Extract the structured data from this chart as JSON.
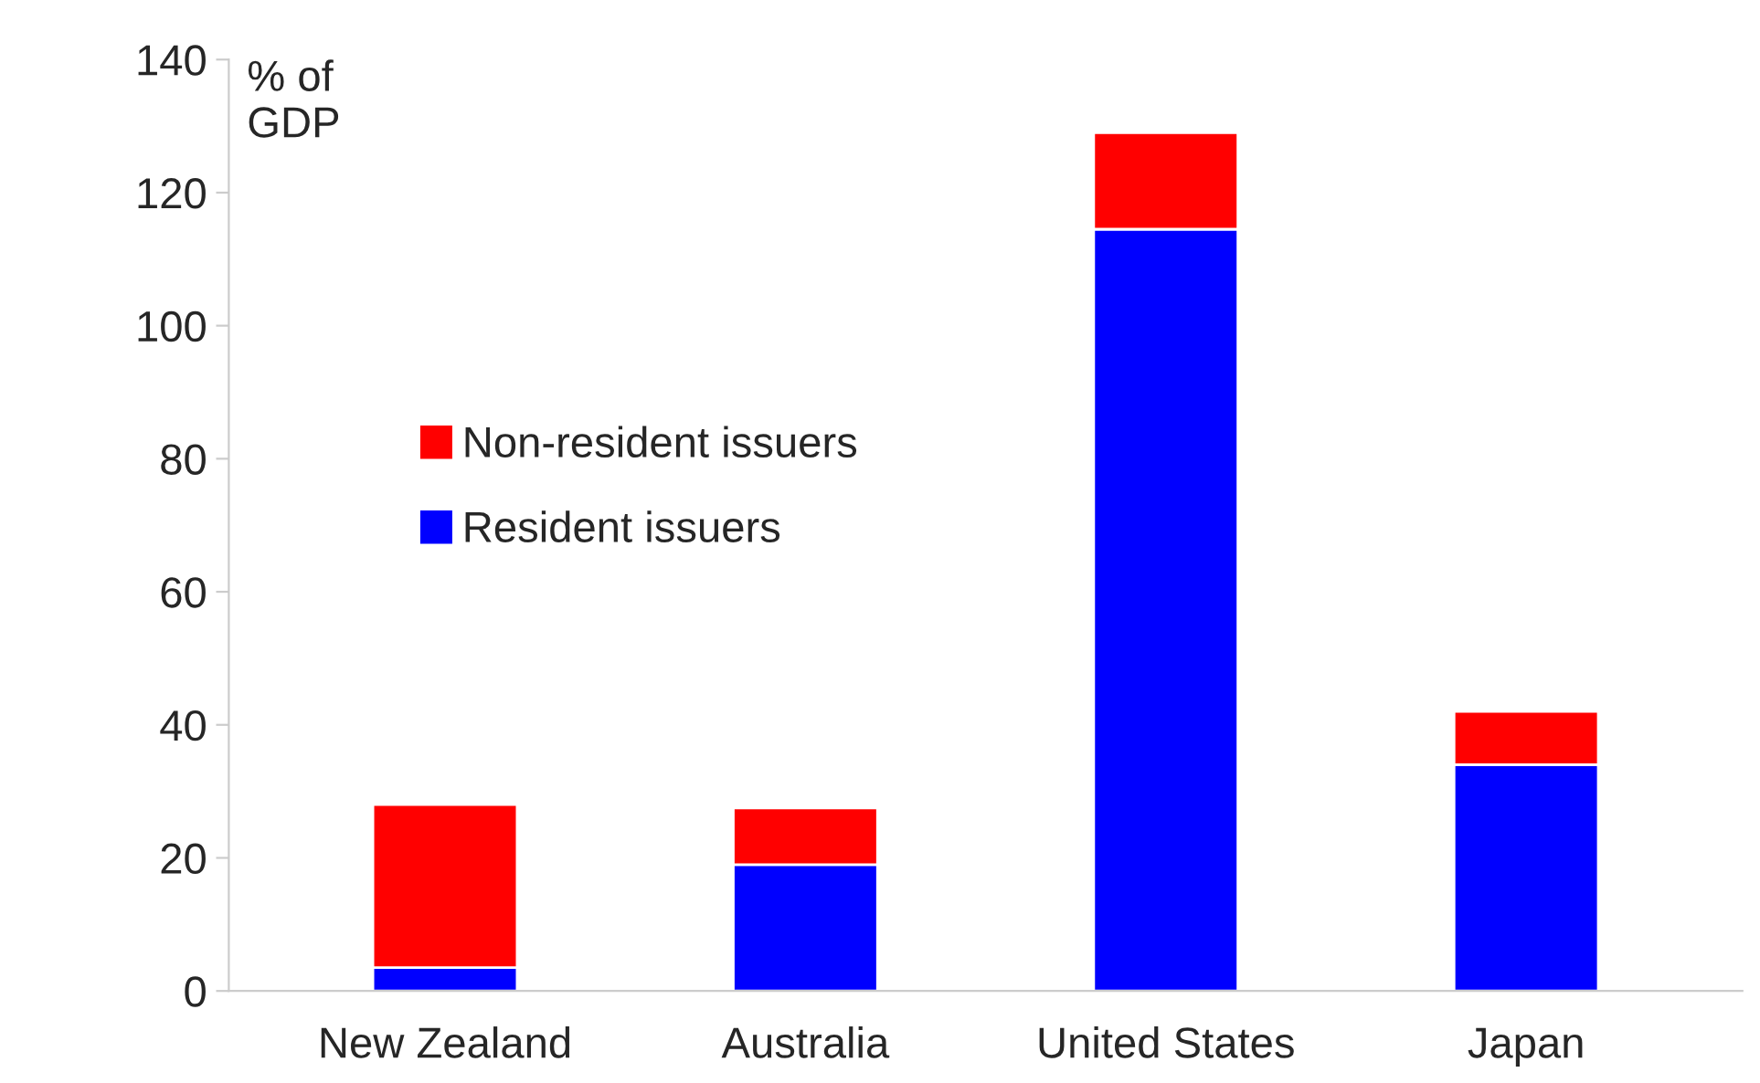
{
  "chart_data": {
    "type": "bar",
    "stacked": true,
    "ylabel": "% of\nGDP",
    "categories": [
      "New Zealand",
      "Australia",
      "United States",
      "Japan"
    ],
    "series": [
      {
        "name": "Resident issuers",
        "color": "#0000ff",
        "values": [
          3.5,
          19,
          114.5,
          34
        ]
      },
      {
        "name": "Non-resident issuers",
        "color": "#ff0000",
        "values": [
          24.5,
          8.5,
          14.5,
          8
        ]
      }
    ],
    "ylim": [
      0,
      140
    ],
    "yticks": [
      0,
      20,
      40,
      60,
      80,
      100,
      120,
      140
    ],
    "grid": false,
    "legend": "top left"
  }
}
